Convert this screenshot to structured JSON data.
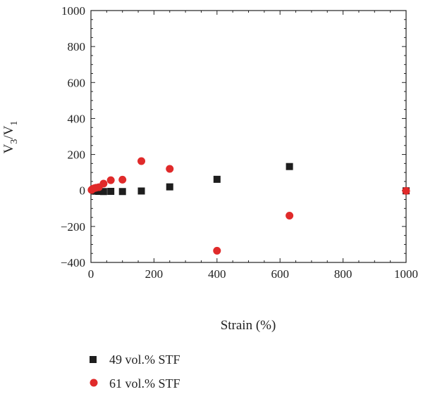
{
  "chart_data": {
    "type": "scatter",
    "xlabel": "Strain (%)",
    "ylabel": "V3/V1",
    "ylabel_parts": {
      "base": "V",
      "sub1": "3",
      "sep": "/V",
      "sub2": "1"
    },
    "xlim": [
      0,
      1000
    ],
    "ylim": [
      -400,
      1000
    ],
    "x_ticks": [
      0,
      200,
      400,
      600,
      800,
      1000
    ],
    "y_ticks": [
      -400,
      -200,
      0,
      200,
      400,
      600,
      800,
      1000
    ],
    "x_minor_step": 50,
    "y_minor_step": 50,
    "grid": false,
    "legend_position": "bottom-left outside",
    "series": [
      {
        "name": "49 vol.% STF",
        "marker": "square",
        "color": "#1e1e1e",
        "points": [
          [
            10,
            -3
          ],
          [
            16,
            -4
          ],
          [
            25,
            -5
          ],
          [
            40,
            -6
          ],
          [
            63,
            -5
          ],
          [
            100,
            -6
          ],
          [
            160,
            -3
          ],
          [
            250,
            20
          ],
          [
            400,
            62
          ],
          [
            630,
            133
          ],
          [
            1000,
            -2
          ]
        ]
      },
      {
        "name": "61 vol.% STF",
        "marker": "circle",
        "color": "#e02a2a",
        "points": [
          [
            2,
            3
          ],
          [
            5,
            8
          ],
          [
            10,
            12
          ],
          [
            16,
            15
          ],
          [
            25,
            18
          ],
          [
            40,
            38
          ],
          [
            63,
            57
          ],
          [
            100,
            60
          ],
          [
            160,
            163
          ],
          [
            250,
            120
          ],
          [
            400,
            -335
          ],
          [
            630,
            -140
          ],
          [
            1000,
            -2
          ]
        ]
      }
    ]
  }
}
